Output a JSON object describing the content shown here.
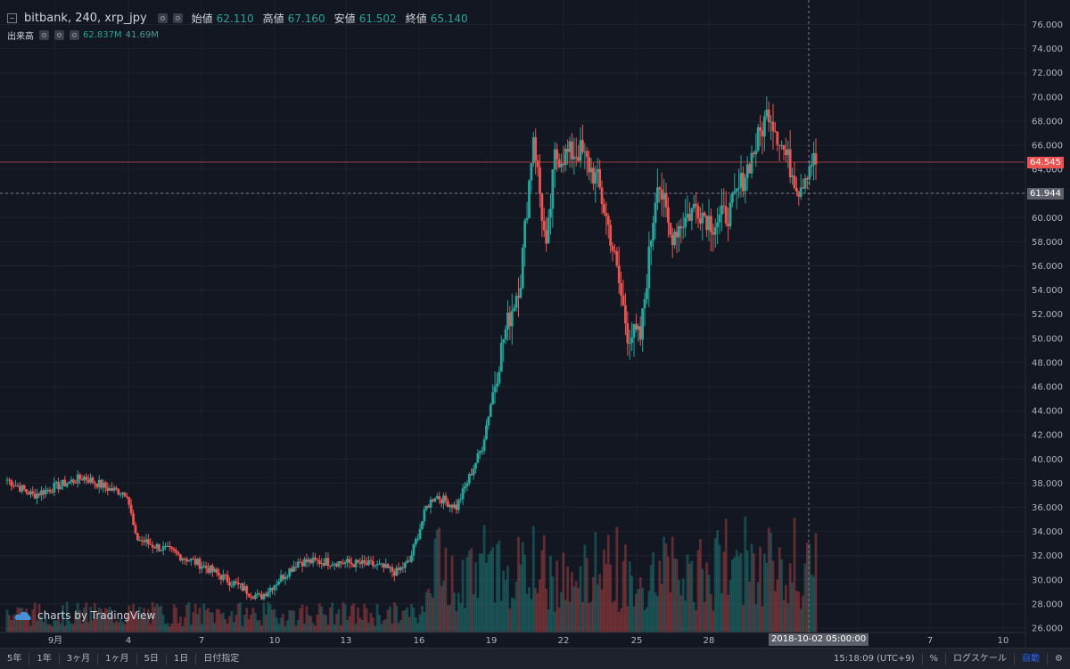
{
  "legend": {
    "ticker": "bitbank, 240, xrp_jpy",
    "open_label": "始値",
    "open_value": "62.110",
    "high_label": "高値",
    "high_value": "67.160",
    "low_label": "安値",
    "low_value": "61.502",
    "close_label": "終値",
    "close_value": "65.140"
  },
  "volume_legend": {
    "label": "出来高",
    "value1": "62.837M",
    "value2": "41.69M"
  },
  "watermark": "charts by TradingView",
  "price_tags": {
    "last": "64.545",
    "crosshair": "61.944"
  },
  "crosshair_date": "2018-10-02 05:00:00",
  "bottom_bar": {
    "timeframes": [
      "5年",
      "1年",
      "3ヶ月",
      "1ヶ月",
      "5日",
      "1日",
      "日付指定"
    ],
    "time": "15:18:09 (UTC+9)",
    "percent": "%",
    "log": "ログスケール",
    "auto": "自動",
    "settings_icon": "gear-icon"
  },
  "colors": {
    "up": "#26a69a",
    "down": "#ef5350",
    "background": "#131722",
    "grid": "#1e222d"
  },
  "chart_data": {
    "type": "candlestick",
    "ylim": [
      26,
      77
    ],
    "y_ticks": [
      "26.000",
      "28.000",
      "30.000",
      "32.000",
      "34.000",
      "36.000",
      "38.000",
      "40.000",
      "42.000",
      "44.000",
      "46.000",
      "48.000",
      "50.000",
      "52.000",
      "54.000",
      "56.000",
      "58.000",
      "60.000",
      "62.000",
      "64.000",
      "66.000",
      "68.000",
      "70.000",
      "72.000",
      "74.000",
      "76.000"
    ],
    "x_ticks": [
      "9月",
      "4",
      "7",
      "10",
      "13",
      "16",
      "19",
      "22",
      "25",
      "28",
      "4",
      "7",
      "10"
    ],
    "price_anchors": [
      [
        0,
        38.3
      ],
      [
        12,
        37.0
      ],
      [
        24,
        37.8
      ],
      [
        36,
        38.5
      ],
      [
        48,
        37.5
      ],
      [
        56,
        37.2
      ],
      [
        60,
        33.5
      ],
      [
        66,
        33.0
      ],
      [
        74,
        32.5
      ],
      [
        90,
        31.3
      ],
      [
        108,
        29.5
      ],
      [
        118,
        28.5
      ],
      [
        136,
        31.5
      ],
      [
        152,
        31.5
      ],
      [
        172,
        31.2
      ],
      [
        182,
        30.6
      ],
      [
        188,
        31.5
      ],
      [
        196,
        36.0
      ],
      [
        200,
        37.0
      ],
      [
        210,
        36.0
      ],
      [
        222,
        41.0
      ],
      [
        232,
        50.0
      ],
      [
        240,
        55.0
      ],
      [
        246,
        67.0
      ],
      [
        252,
        57.0
      ],
      [
        256,
        65.0
      ],
      [
        268,
        65.5
      ],
      [
        276,
        63.0
      ],
      [
        282,
        58.5
      ],
      [
        290,
        50.5
      ],
      [
        296,
        50.0
      ],
      [
        304,
        63.5
      ],
      [
        310,
        58.5
      ],
      [
        322,
        61.0
      ],
      [
        330,
        59.5
      ],
      [
        338,
        60.5
      ],
      [
        350,
        66.0
      ],
      [
        356,
        69.0
      ],
      [
        362,
        66.0
      ],
      [
        370,
        62.5
      ],
      [
        376,
        64.8
      ],
      [
        378,
        64.5
      ]
    ],
    "volume_ylim": [
      0,
      40
    ]
  }
}
